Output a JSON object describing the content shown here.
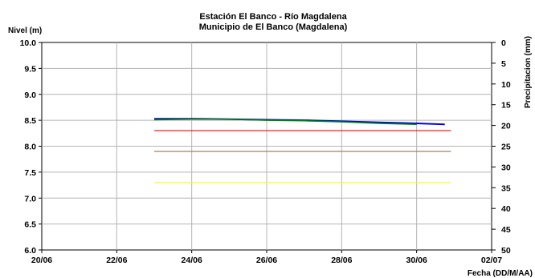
{
  "chart_data": {
    "type": "line",
    "title": "Estación El Banco - Río Magdalena",
    "subtitle": "Municipio de El Banco (Magdalena)",
    "ylabel": "Nivel (m)",
    "y2label": "Precipitacion (mm)",
    "xlabel": "Fecha (DD/M/AA)",
    "x_start": "20/06",
    "x_end": "02/07",
    "xticks": [
      {
        "date": "20/06",
        "label": "20/06"
      },
      {
        "date": "22/06",
        "label": "22/06"
      },
      {
        "date": "24/06",
        "label": "24/06"
      },
      {
        "date": "26/06",
        "label": "26/06"
      },
      {
        "date": "28/06",
        "label": "28/06"
      },
      {
        "date": "30/06",
        "label": "30/06"
      },
      {
        "date": "02/07",
        "label": "02/07"
      }
    ],
    "ylim": [
      6.0,
      10.0
    ],
    "yticks": [
      "6.0",
      "6.5",
      "7.0",
      "7.5",
      "8.0",
      "8.5",
      "9.0",
      "9.5",
      "10.0"
    ],
    "y2lim": [
      0,
      50
    ],
    "y2ticks": [
      "0",
      "5",
      "10",
      "15",
      "20",
      "25",
      "30",
      "35",
      "40",
      "45",
      "50"
    ],
    "grid": true,
    "series": [
      {
        "color": "#0000ee",
        "width": 2,
        "points": [
          [
            "23/06",
            8.53
          ],
          [
            "24/06",
            8.53
          ],
          [
            "25/06",
            8.52
          ],
          [
            "26/06",
            8.51
          ],
          [
            "27/06",
            8.5
          ],
          [
            "28/06",
            8.48
          ],
          [
            "29/06",
            8.46
          ],
          [
            "30/06",
            8.44
          ],
          [
            "30/06 18h",
            8.42
          ]
        ]
      },
      {
        "color": "#008800",
        "width": 1.5,
        "points": [
          [
            "23/06",
            8.51
          ],
          [
            "24/06",
            8.52
          ],
          [
            "25/06",
            8.52
          ],
          [
            "26/06",
            8.5
          ],
          [
            "27/06",
            8.49
          ],
          [
            "28/06",
            8.47
          ],
          [
            "29/06",
            8.44
          ],
          [
            "30/06",
            8.42
          ]
        ]
      }
    ],
    "reference_lines": [
      {
        "value": 8.3,
        "color": "#ff0000",
        "from": "23/06",
        "to": "30/06 22h"
      },
      {
        "value": 7.9,
        "color": "#a08060",
        "from": "23/06",
        "to": "30/06 22h"
      },
      {
        "value": 7.3,
        "color": "#ffff00",
        "from": "23/06",
        "to": "30/06 22h"
      }
    ]
  }
}
